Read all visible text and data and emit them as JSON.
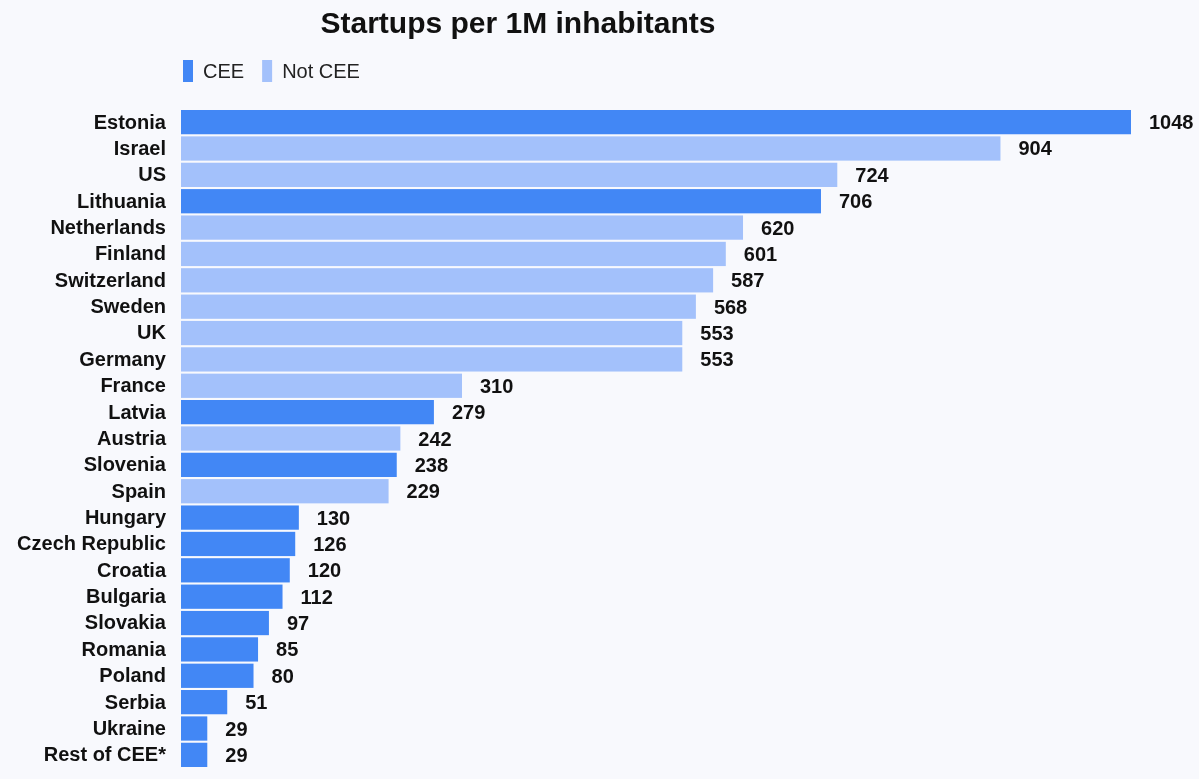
{
  "chart_data": {
    "type": "bar",
    "orientation": "horizontal",
    "stacked": true,
    "title": "Startups per 1M inhabitants",
    "categories": [
      "Estonia",
      "Israel",
      "US",
      "Lithuania",
      "Netherlands",
      "Finland",
      "Switzerland",
      "Sweden",
      "UK",
      "Germany",
      "France",
      "Latvia",
      "Austria",
      "Slovenia",
      "Spain",
      "Hungary",
      "Czech Republic",
      "Croatia",
      "Bulgaria",
      "Slovakia",
      "Romania",
      "Poland",
      "Serbia",
      "Ukraine",
      "Rest of CEE*"
    ],
    "series": [
      {
        "name": "CEE",
        "color": "#4287f5",
        "values": [
          1048,
          null,
          null,
          706,
          null,
          null,
          null,
          null,
          null,
          null,
          null,
          279,
          null,
          238,
          null,
          130,
          126,
          120,
          112,
          97,
          85,
          80,
          51,
          29,
          29
        ]
      },
      {
        "name": "Not CEE",
        "color": "#a3c1fb",
        "values": [
          null,
          904,
          724,
          null,
          620,
          601,
          587,
          568,
          553,
          553,
          310,
          null,
          242,
          null,
          229,
          null,
          null,
          null,
          null,
          null,
          null,
          null,
          null,
          null,
          null
        ]
      }
    ],
    "data_labels": true,
    "legend": "top left",
    "tick_labels": "y"
  }
}
